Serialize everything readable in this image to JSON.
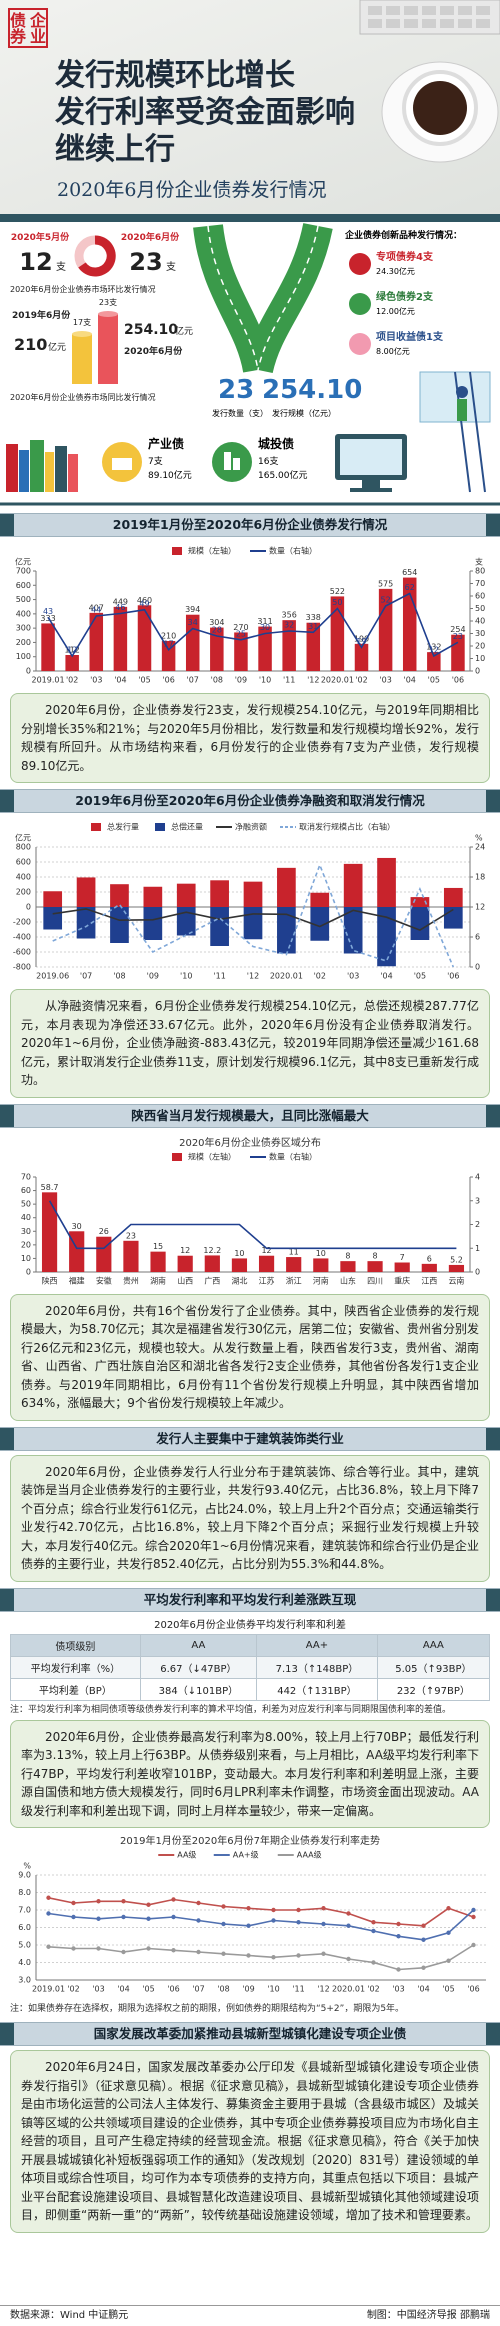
{
  "header": {
    "logo": "企业债券",
    "title": [
      "发行规模环比增长",
      "发行利率受资金面影响",
      "继续上行"
    ],
    "subtitle": "2020年6月份企业债券发行情况"
  },
  "summary": {
    "mom": {
      "caption": "2020年6月份企业债券市场环比发行情况",
      "items": [
        {
          "period": "2020年5月份",
          "count": "12",
          "unit": "支"
        },
        {
          "period": "2020年6月份",
          "count": "23",
          "unit": "支"
        }
      ]
    },
    "yoy": {
      "caption": "2020年6月份企业债券市场同比发行情况",
      "items": [
        {
          "period": "2019年6月份",
          "amount": "210",
          "unit": "亿元",
          "count": "17支"
        },
        {
          "period": "2020年6月份",
          "amount": "254.10",
          "unit": "亿元",
          "count": "23支"
        }
      ]
    },
    "totals": [
      {
        "value": "23",
        "label": "发行数量（支）"
      },
      {
        "value": "254.10",
        "label": "发行规模（亿元）"
      }
    ],
    "innovation": {
      "title": "企业债券创新品种发行情况：",
      "items": [
        {
          "name": "专项债券4支",
          "amount": "24.30亿元"
        },
        {
          "name": "绿色债券2支",
          "amount": "12.00亿元"
        },
        {
          "name": "项目收益债1支",
          "amount": "8.00亿元"
        }
      ]
    },
    "types": [
      {
        "name": "产业债",
        "count": "7支",
        "amount": "89.10亿元"
      },
      {
        "name": "城投债",
        "count": "16支",
        "amount": "165.00亿元"
      }
    ]
  },
  "sections": [
    {
      "heading": "2019年1月份至2020年6月份企业债券发行情况",
      "paragraph": "2020年6月份，企业债券发行23支，发行规模254.10亿元，与2019年同期相比分别增长35%和21%；与2020年5月份相比，发行数量和发行规模均增长92%，发行规模有所回升。从市场结构来看，6月份发行的企业债券有7支为产业债，发行规模89.10亿元。"
    },
    {
      "heading": "2019年6月份至2020年6月份企业债券净融资和取消发行情况",
      "paragraph": "从净融资情况来看，6月份企业债券发行规模254.10亿元，总偿还规模287.77亿元，本月表现为净偿还33.67亿元。此外，2020年6月份没有企业债券取消发行。2020年1~6月份，企业债净融资-883.43亿元，较2019年同期净偿还量减少161.68亿元，累计取消发行企业债券11支，原计划发行规模96.1亿元，其中8支已重新发行成功。"
    },
    {
      "heading": "陕西省当月发行规模最大，且同比涨幅最大",
      "paragraph": "2020年6月份，共有16个省份发行了企业债券。其中，陕西省企业债券的发行规模最大，为58.70亿元；其次是福建省发行30亿元，居第二位；安徽省、贵州省分别发行26亿元和23亿元，规模也较大。从发行数量上看，陕西省发行3支，贵州省、湖南省、山西省、广西壮族自治区和湖北省各发行2支企业债券，其他省份各发行1支企业债券。与2019年同期相比，6月份有11个省份发行规模上升明显，其中陕西省增加634%，涨幅最大；9个省份发行规模较上年减少。"
    },
    {
      "heading": "发行人主要集中于建筑装饰类行业",
      "paragraph": "2020年6月份，企业债券发行人行业分布于建筑装饰、综合等行业。其中，建筑装饰是当月企业债券发行的主要行业，共发行93.40亿元，占比36.8%，较上月下降7个百分点；综合行业发行61亿元，占比24.0%，较上月上升2个百分点；交通运输类行业发行42.70亿元，占比16.8%，较上月下降2个百分点；采掘行业发行规模上升较大，本月发行40亿元。综合2020年1~6月份情况来看，建筑装饰和综合行业仍是企业债券的主要行业，共发行852.40亿元，占比分别为55.3%和44.8%。"
    },
    {
      "heading": "平均发行利率和平均发行利差涨跌互现",
      "paragraph": "2020年6月份，企业债券最高发行利率为8.00%，较上月上行70BP；最低发行利率为3.13%，较上月上行63BP。从债券级别来看，与上月相比，AA级平均发行利率下行47BP，平均发行利差收窄101BP，变动最大。本月发行利率和利差明显上涨，主要源自国债和地方债大规模发行，同时6月LPR利率未作调整，市场资金面出现波动。AA级发行利率和利差出现下调，同时上月样本量较少，带来一定偏离。"
    },
    {
      "heading": "国家发展改革委加紧推动县城新型城镇化建设专项企业债",
      "paragraph": "2020年6月24日，国家发展改革委办公厅印发《县城新型城镇化建设专项企业债券发行指引》（征求意见稿）。根据《征求意见稿》，县城新型城镇化建设专项企业债券是由市场化运营的公司法人主体发行、募集资金主要用于县城（含县级市城区）及城关镇等区域的公共领域项目建设的企业债券，其中专项企业债券募投项目应为市场化自主经营的项目，且可产生稳定持续的经营现金流。根据《征求意见稿》，符合《关于加快开展县城城镇化补短板强弱项工作的通知》（发改规划〔2020〕831号）建设领域的单体项目或综合性项目，均可作为本专项债券的支持方向，其重点包括以下项目：县城产业平台配套设施建设项目、县城智慧化改造建设项目、县城新型城镇化其他领域建设项目，即侧重“两新一重”的“两新”，较传统基础设施建设领域，增加了技术和管理要素。"
    }
  ],
  "table": {
    "title": "2020年6月份企业债券平均发行利率和利差",
    "columns": [
      "债项级别",
      "AA",
      "AA+",
      "AAA"
    ],
    "rows": [
      [
        "平均发行利率（%）",
        "6.67（↓47BP）",
        "7.13（↑148BP）",
        "5.05（↑93BP）"
      ],
      [
        "平均利差（BP）",
        "384（↓101BP）",
        "442（↑131BP）",
        "232（↑97BP）"
      ]
    ],
    "note": "注：平均发行利率为相同债项等级债券发行利率的算术平均值，利差为对应发行利率与同期限国债利率的差值。"
  },
  "chart_data": [
    {
      "type": "bar",
      "categories": [
        "2019.01",
        "'02",
        "'03",
        "'04",
        "'05",
        "'06",
        "'07",
        "'08",
        "'09",
        "'10",
        "'11",
        "'12",
        "2020.01",
        "'02",
        "'03",
        "'04",
        "'05",
        "'06"
      ],
      "series": [
        {
          "name": "规模（左轴）",
          "color": "#c8232c",
          "labels": true,
          "values": [
            333,
            112,
            407,
            449,
            460,
            210,
            394,
            304,
            270,
            311,
            356,
            338,
            522,
            190,
            575,
            654,
            132,
            254
          ]
        },
        {
          "name": "数量（右轴）",
          "type": "line",
          "axis": "y2",
          "color": "#1f3f8f",
          "labels": true,
          "values": [
            43,
            12,
            44,
            46,
            49,
            17,
            34,
            28,
            25,
            30,
            32,
            31,
            50,
            19,
            52,
            62,
            12,
            23
          ]
        }
      ],
      "ylabel": "亿元",
      "y2label": "支",
      "ylim": [
        0,
        700
      ],
      "yticks": [
        0,
        100,
        200,
        300,
        400,
        500,
        600,
        700
      ],
      "y2lim": [
        0,
        80
      ],
      "y2ticks": [
        0,
        10,
        20,
        30,
        40,
        50,
        60,
        70,
        80
      ],
      "grid": false
    },
    {
      "type": "bar",
      "categories": [
        "2019.06",
        "'07",
        "'08",
        "'09",
        "'10",
        "'11",
        "'12",
        "2020.01",
        "'02",
        "'03",
        "'04",
        "'05",
        "'06"
      ],
      "series": [
        {
          "name": "总发行量",
          "color": "#c8232c",
          "values": [
            210,
            394,
            304,
            270,
            311,
            356,
            338,
            522,
            190,
            575,
            654,
            132,
            254.1
          ]
        },
        {
          "name": "总偿还量",
          "color": "#1f3f8f",
          "values": [
            -300,
            -420,
            -480,
            -440,
            -380,
            -520,
            -430,
            -620,
            -450,
            -620,
            -790,
            -440,
            -287.77
          ]
        },
        {
          "name": "净融资额",
          "type": "line",
          "color": "#333333",
          "values": [
            -90,
            -26,
            -176,
            -170,
            -69,
            -164,
            -92,
            -98,
            -260,
            -45,
            -136,
            -308,
            -33.67
          ]
        },
        {
          "name": "取消发行规模占比（右轴）",
          "type": "line",
          "axis": "y2",
          "dashed": true,
          "color": "#7fa7d8",
          "values": [
            5.2,
            8.1,
            12.5,
            3,
            6.4,
            9.8,
            4.1,
            2.5,
            20.4,
            3.3,
            1.2,
            15.6,
            0
          ]
        }
      ],
      "ylabel": "亿元",
      "y2label": "%",
      "ylim": [
        -800,
        800
      ],
      "yticks": [
        -800,
        -600,
        -400,
        -200,
        0,
        200,
        400,
        600,
        800
      ],
      "y2lim": [
        0,
        24
      ],
      "y2ticks": [
        0,
        6,
        12,
        18,
        24
      ],
      "grid": true
    },
    {
      "type": "bar",
      "title": "2020年6月份企业债券区域分布",
      "categories": [
        "陕西",
        "福建",
        "安徽",
        "贵州",
        "湖南",
        "山西",
        "广西",
        "湖北",
        "江苏",
        "浙江",
        "河南",
        "山东",
        "四川",
        "重庆",
        "江西",
        "云南"
      ],
      "series": [
        {
          "name": "规模（左轴）",
          "color": "#c8232c",
          "labels": true,
          "values": [
            58.7,
            30,
            26,
            23,
            15,
            12,
            12.2,
            10,
            12,
            11,
            10,
            8,
            8,
            7,
            6,
            5.2
          ]
        },
        {
          "name": "数量（右轴）",
          "type": "line",
          "axis": "y2",
          "color": "#1f3f8f",
          "values": [
            3,
            1,
            1,
            2,
            2,
            2,
            2,
            2,
            1,
            1,
            1,
            1,
            1,
            1,
            1,
            1
          ]
        }
      ],
      "ylim": [
        0,
        70
      ],
      "yticks": [
        0,
        10,
        20,
        30,
        40,
        50,
        60,
        70
      ],
      "y2lim": [
        0,
        4
      ],
      "y2ticks": [
        0,
        1,
        2,
        3,
        4
      ],
      "grid": false
    },
    {
      "type": "line",
      "title": "2019年1月份至2020年6月份7年期企业债券发行利率走势",
      "categories": [
        "2019.01",
        "'02",
        "'03",
        "'04",
        "'05",
        "'06",
        "'07",
        "'08",
        "'09",
        "'10",
        "'11",
        "'12",
        "2020.01",
        "'02",
        "'03",
        "'04",
        "'05",
        "'06"
      ],
      "series": [
        {
          "name": "AA级",
          "type": "line",
          "color": "#c0504d",
          "values": [
            7.7,
            7.4,
            7.5,
            7.5,
            7.3,
            7.6,
            7.4,
            7.2,
            7.1,
            7.0,
            7.0,
            7.1,
            6.8,
            6.3,
            6.2,
            6.1,
            7.1,
            6.6
          ]
        },
        {
          "name": "AA+级",
          "type": "line",
          "color": "#4f6fb0",
          "values": [
            6.8,
            6.6,
            6.5,
            6.6,
            6.5,
            6.6,
            6.4,
            6.2,
            6.1,
            6.4,
            6.3,
            6.2,
            6.1,
            5.8,
            5.5,
            5.3,
            5.7,
            7.0
          ]
        },
        {
          "name": "AAA级",
          "type": "line",
          "color": "#9a9a9a",
          "values": [
            4.9,
            4.8,
            4.8,
            4.6,
            4.8,
            4.7,
            4.6,
            4.5,
            4.4,
            4.3,
            4.4,
            4.5,
            4.2,
            4.0,
            3.6,
            3.7,
            4.1,
            5.0
          ]
        }
      ],
      "ylabel": "%",
      "ylim": [
        3,
        9
      ],
      "yticks": [
        {
          "value": 3,
          "label": "3.0"
        },
        {
          "value": 4,
          "label": "4.0"
        },
        {
          "value": 5,
          "label": "5.0"
        },
        {
          "value": 6,
          "label": "6.0"
        },
        {
          "value": 7,
          "label": "7.0"
        },
        {
          "value": 8,
          "label": "8.0"
        },
        {
          "value": 9,
          "label": "9.0"
        }
      ],
      "grid": true,
      "markers": true,
      "note": "注：如果债券存在选择权，期限为选择权之前的期限，例如债券的期限结构为“5+2”，期限为5年。"
    }
  ],
  "footer": {
    "source": "数据来源：Wind 中证鹏元",
    "credit": "制图：中国经济导报 邵鹏瑞"
  }
}
